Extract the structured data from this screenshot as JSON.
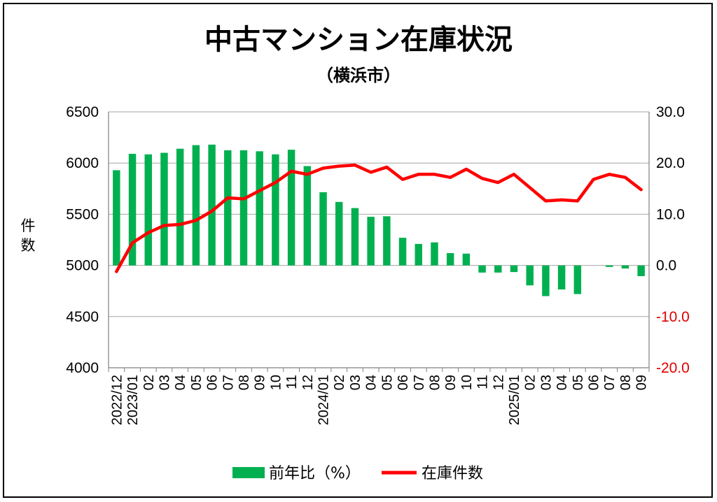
{
  "chart_data": {
    "type": "bar+line",
    "title": "中古マンション在庫状況",
    "subtitle": "（横浜市）",
    "ylabel_left": "件数",
    "ylim_left": [
      4000,
      6500
    ],
    "yticks_left": [
      "4000",
      "4500",
      "5000",
      "5500",
      "6000",
      "6500"
    ],
    "ylim_right": [
      -20,
      30
    ],
    "yticks_right": [
      "-20.0",
      "-10.0",
      "0.0",
      "10.0",
      "20.0",
      "30.0"
    ],
    "yticks_right_values": [
      -20,
      -10,
      0,
      10,
      20,
      30
    ],
    "categories": [
      "2022/12",
      "2023/01",
      "02",
      "03",
      "04",
      "05",
      "06",
      "07",
      "08",
      "09",
      "10",
      "11",
      "12",
      "2024/01",
      "02",
      "03",
      "04",
      "05",
      "06",
      "07",
      "08",
      "09",
      "10",
      "11",
      "12",
      "2025/01",
      "02",
      "03",
      "04",
      "05",
      "06",
      "07",
      "08",
      "09"
    ],
    "series": [
      {
        "name": "前年比（%）",
        "kind": "bar",
        "axis": "right",
        "color": "#00b050",
        "values": [
          18.6,
          21.8,
          21.7,
          22.0,
          22.8,
          23.5,
          23.6,
          22.5,
          22.5,
          22.3,
          21.7,
          22.6,
          19.4,
          14.3,
          12.4,
          11.2,
          9.5,
          9.6,
          5.4,
          4.2,
          4.5,
          2.4,
          2.3,
          -1.4,
          -1.4,
          -1.3,
          -3.9,
          -6.0,
          -4.7,
          -5.6,
          0,
          -0.3,
          -0.6,
          -2.1
        ]
      },
      {
        "name": "在庫件数",
        "kind": "line",
        "axis": "left",
        "color": "#ff0000",
        "values": [
          4940,
          5220,
          5320,
          5390,
          5400,
          5440,
          5530,
          5660,
          5650,
          5730,
          5810,
          5920,
          5890,
          5950,
          5970,
          5980,
          5910,
          5960,
          5840,
          5890,
          5890,
          5860,
          5940,
          5850,
          5810,
          5890,
          5760,
          5630,
          5640,
          5630,
          5840,
          5890,
          5860,
          5740
        ]
      }
    ],
    "grid": true,
    "legend": "bottom"
  }
}
